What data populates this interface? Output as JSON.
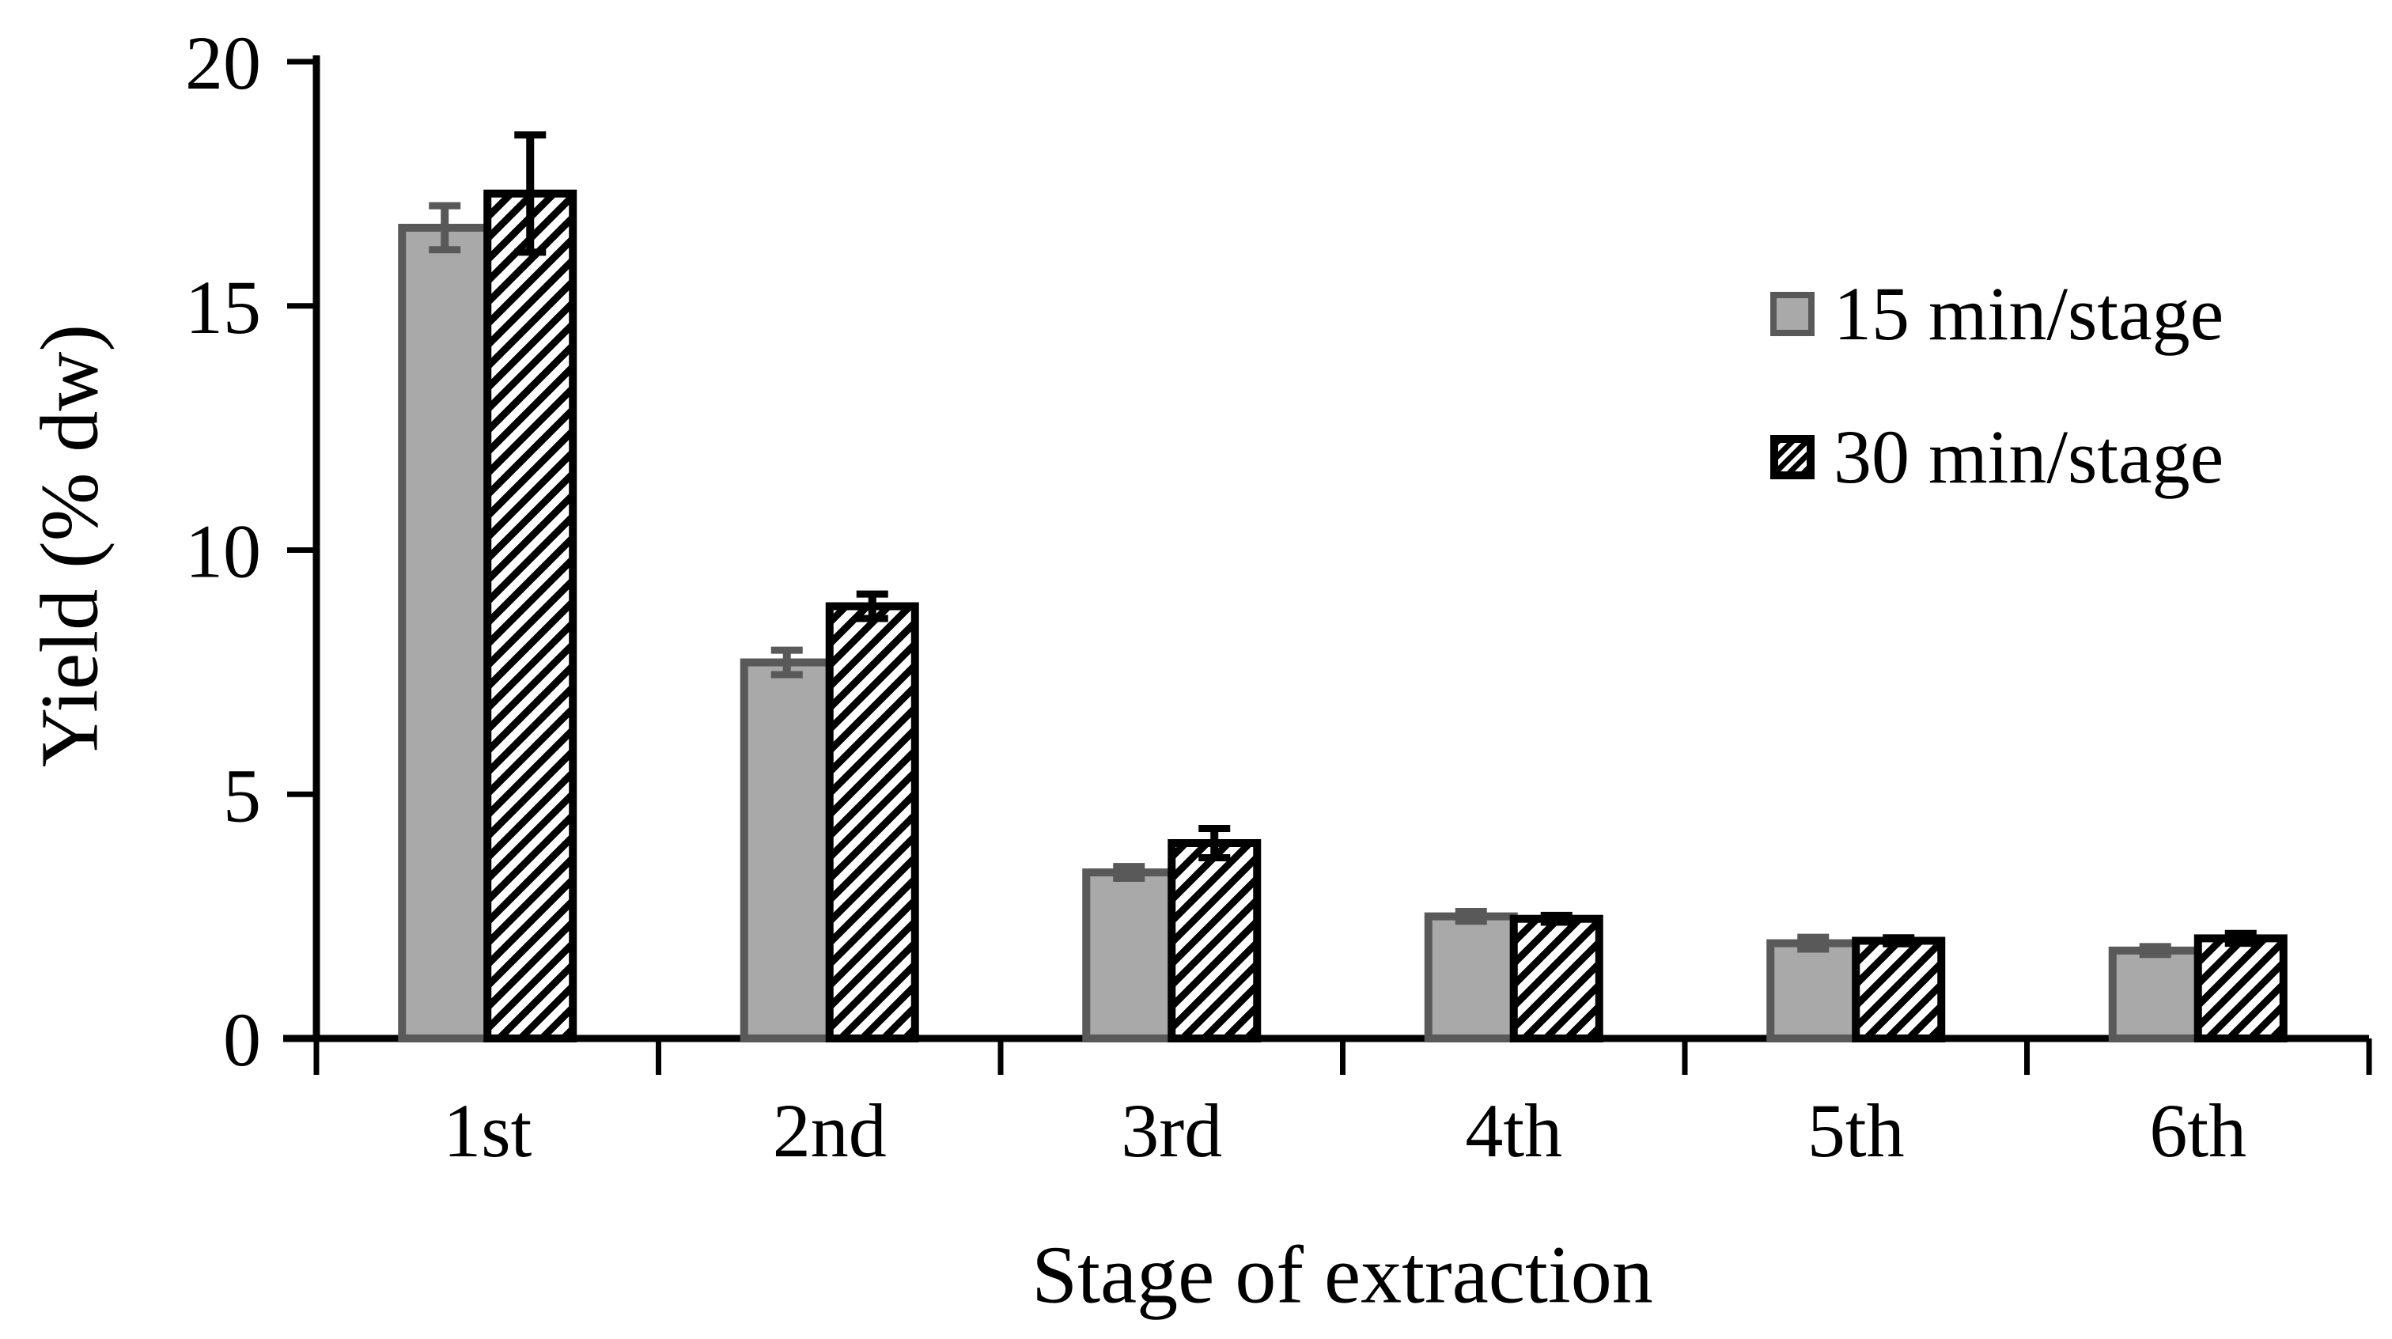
{
  "chart_data": {
    "type": "bar",
    "title": "",
    "xlabel": "Stage of extraction",
    "ylabel": "Yield (% dw)",
    "categories": [
      "1st",
      "2nd",
      "3rd",
      "4th",
      "5th",
      "6th"
    ],
    "series": [
      {
        "name": "15 min/stage",
        "style": "solid",
        "fill": "#a9a9a9",
        "edge": "#595959",
        "values": [
          16.6,
          7.7,
          3.4,
          2.5,
          1.95,
          1.8
        ],
        "errors": [
          0.45,
          0.25,
          0.12,
          0.1,
          0.12,
          0.08
        ]
      },
      {
        "name": "30 min/stage",
        "style": "hatched",
        "fill": "#ffffff",
        "edge": "#000000",
        "hatch": "diagonal-forward",
        "values": [
          17.3,
          8.85,
          4.0,
          2.45,
          2.0,
          2.05
        ],
        "errors": [
          1.2,
          0.25,
          0.3,
          0.07,
          0.06,
          0.1
        ]
      }
    ],
    "y_axis": {
      "min": 0,
      "max": 20,
      "tick_step": 5,
      "tick_labels": [
        "0",
        "5",
        "10",
        "15",
        "20"
      ]
    },
    "x_axis": {
      "label": "Stage of extraction"
    },
    "legend": {
      "position": "upper-right",
      "items": [
        "15 min/stage",
        "30 min/stage"
      ]
    },
    "grid": false,
    "error_bars": true,
    "colors": {
      "series1_fill": "#a9a9a9",
      "series1_edge": "#595959",
      "series2_fill": "#ffffff",
      "series2_edge": "#000000",
      "axis": "#000000",
      "background": "#ffffff"
    }
  }
}
